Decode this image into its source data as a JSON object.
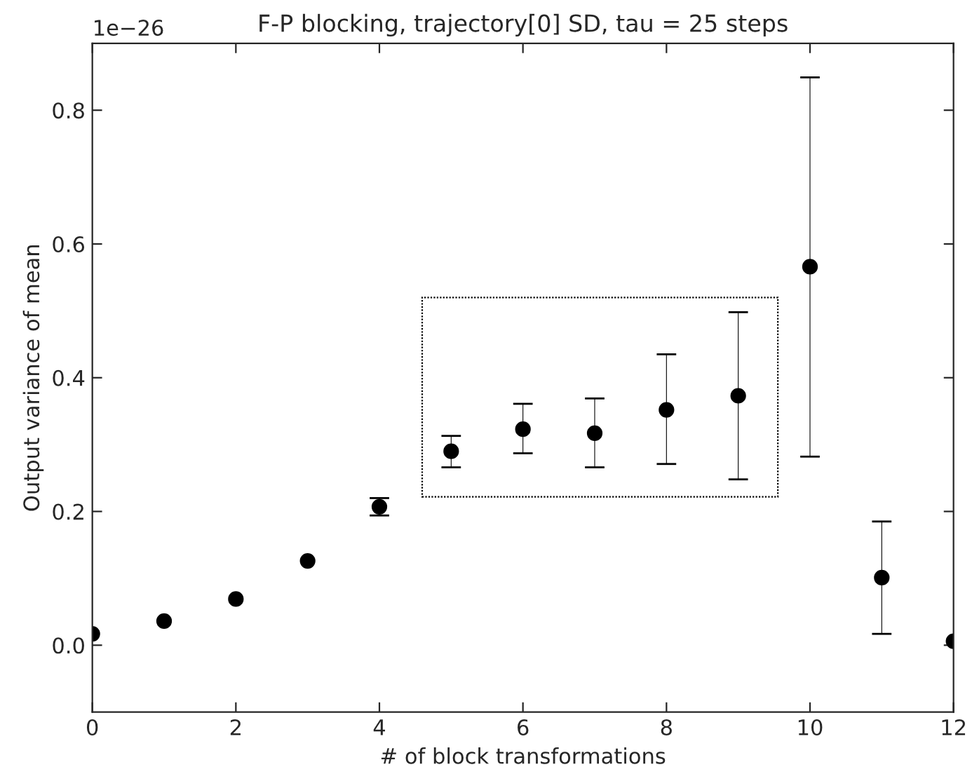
{
  "chart_data": {
    "type": "scatter",
    "title": "F-P blocking, trajectory[0] SD, tau = 25 steps",
    "xlabel": "# of block transformations",
    "ylabel": "Output variance of mean",
    "annotations": [
      "1e−26"
    ],
    "series": [
      {
        "color": "#000000",
        "x": [
          0,
          1,
          2,
          3,
          4,
          5,
          6,
          7,
          8,
          9,
          10,
          11,
          12
        ],
        "values": [
          0.017,
          0.036,
          0.069,
          0.126,
          0.207,
          0.29,
          0.323,
          0.317,
          0.352,
          0.373,
          0.566,
          0.101,
          0.006
        ],
        "errors": [
          null,
          null,
          null,
          null,
          [
            0.194,
            0.22
          ],
          [
            0.266,
            0.313
          ],
          [
            0.287,
            0.361
          ],
          [
            0.266,
            0.369
          ],
          [
            0.271,
            0.435
          ],
          [
            0.248,
            0.498
          ],
          [
            0.282,
            0.849
          ],
          [
            0.017,
            0.185
          ],
          null
        ]
      }
    ],
    "marker": "circle",
    "xlim": [
      0,
      12
    ],
    "xticks": [
      0,
      2,
      4,
      6,
      8,
      10,
      12
    ],
    "ylim": [
      -0.1,
      0.9
    ],
    "yticks": [
      {
        "value": 0,
        "label": "0.0"
      },
      0.2,
      0.4,
      0.6,
      0.8
    ],
    "grid": false,
    "legend": false
  }
}
